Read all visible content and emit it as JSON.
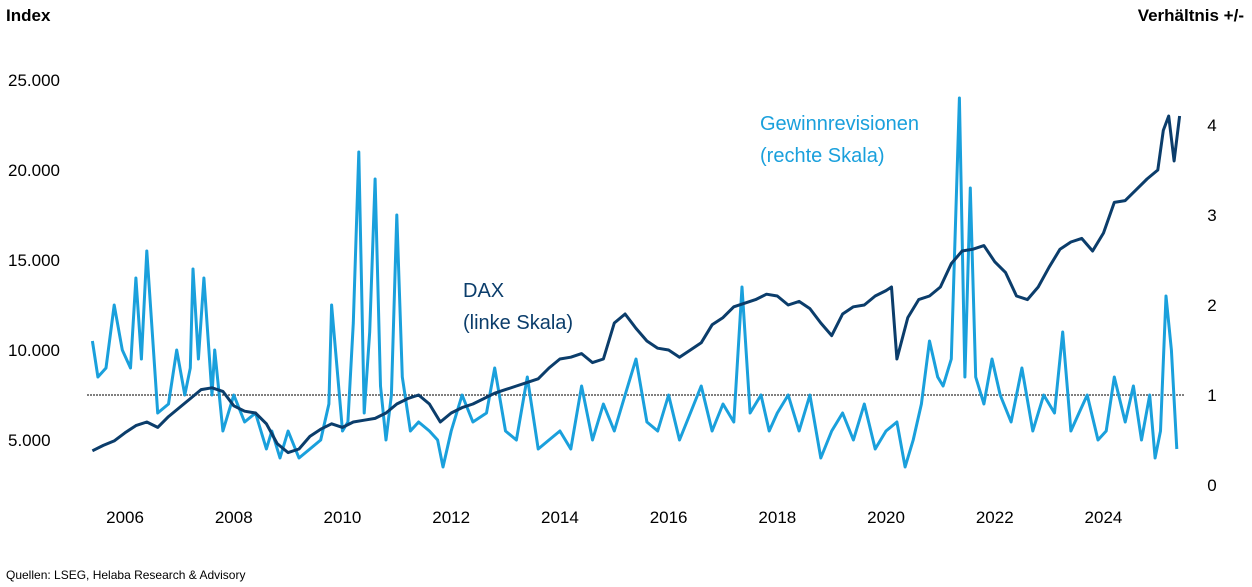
{
  "chart_data": {
    "type": "line",
    "left_axis_title": "Index",
    "right_axis_title": "Verhältnis +/-",
    "source": "Quellen: LSEG, Helaba Research & Advisory",
    "x_range": [
      2005.4,
      2025.6
    ],
    "x_ticks": [
      "2006",
      "2008",
      "2010",
      "2012",
      "2014",
      "2016",
      "2018",
      "2020",
      "2022",
      "2024"
    ],
    "x_tick_values": [
      2006,
      2008,
      2010,
      2012,
      2014,
      2016,
      2018,
      2020,
      2022,
      2024
    ],
    "y_left_range": [
      2500,
      27500
    ],
    "y_left_ticks": [
      "5.000",
      "10.000",
      "15.000",
      "20.000",
      "25.000"
    ],
    "y_left_tick_values": [
      5000,
      10000,
      15000,
      20000,
      25000
    ],
    "y_right_range": [
      0,
      5
    ],
    "y_right_ticks": [
      "0",
      "1",
      "2",
      "3",
      "4"
    ],
    "y_right_tick_values": [
      0,
      1,
      2,
      3,
      4
    ],
    "reference_line_right": 1,
    "annotations": [
      {
        "lines": [
          "Gewinnrevisionen",
          "(rechte Skala)"
        ],
        "color": "#1aa0dc"
      },
      {
        "lines": [
          "DAX",
          "(linke Skala)"
        ],
        "color": "#0b3d6b"
      }
    ],
    "series": [
      {
        "name": "DAX",
        "axis": "left",
        "color": "#0b3d6b",
        "x": [
          2005.5,
          2005.7,
          2005.9,
          2006.1,
          2006.3,
          2006.5,
          2006.7,
          2006.9,
          2007.1,
          2007.3,
          2007.5,
          2007.7,
          2007.9,
          2008.1,
          2008.3,
          2008.5,
          2008.7,
          2008.9,
          2009.1,
          2009.3,
          2009.5,
          2009.7,
          2009.9,
          2010.1,
          2010.3,
          2010.5,
          2010.7,
          2010.9,
          2011.1,
          2011.3,
          2011.5,
          2011.7,
          2011.9,
          2012.1,
          2012.3,
          2012.5,
          2012.7,
          2012.9,
          2013.1,
          2013.3,
          2013.5,
          2013.7,
          2013.9,
          2014.1,
          2014.3,
          2014.5,
          2014.7,
          2014.9,
          2015.1,
          2015.3,
          2015.5,
          2015.7,
          2015.9,
          2016.1,
          2016.3,
          2016.5,
          2016.7,
          2016.9,
          2017.1,
          2017.3,
          2017.5,
          2017.7,
          2017.9,
          2018.1,
          2018.3,
          2018.5,
          2018.7,
          2018.9,
          2019.1,
          2019.3,
          2019.5,
          2019.7,
          2019.9,
          2020.1,
          2020.2,
          2020.3,
          2020.5,
          2020.7,
          2020.9,
          2021.1,
          2021.3,
          2021.5,
          2021.7,
          2021.9,
          2022.1,
          2022.3,
          2022.5,
          2022.7,
          2022.9,
          2023.1,
          2023.3,
          2023.5,
          2023.7,
          2023.9,
          2024.1,
          2024.3,
          2024.5,
          2024.7,
          2024.9,
          2025.1,
          2025.2,
          2025.3,
          2025.4,
          2025.5
        ],
        "values": [
          4400,
          4700,
          4950,
          5400,
          5800,
          6000,
          5700,
          6300,
          6800,
          7300,
          7800,
          7900,
          7700,
          6900,
          6600,
          6500,
          5900,
          4800,
          4300,
          4500,
          5200,
          5600,
          5900,
          5700,
          6000,
          6100,
          6200,
          6500,
          7000,
          7300,
          7500,
          7000,
          6000,
          6500,
          6800,
          7000,
          7300,
          7600,
          7800,
          8000,
          8200,
          8400,
          9000,
          9500,
          9600,
          9800,
          9300,
          9500,
          11500,
          12000,
          11200,
          10500,
          10100,
          10000,
          9600,
          10000,
          10400,
          11400,
          11800,
          12400,
          12600,
          12800,
          13100,
          13000,
          12500,
          12700,
          12300,
          11500,
          10800,
          12000,
          12400,
          12500,
          13000,
          13300,
          13500,
          9500,
          11800,
          12800,
          13000,
          13500,
          14800,
          15500,
          15600,
          15800,
          14900,
          14300,
          13000,
          12800,
          13500,
          14600,
          15600,
          16000,
          16200,
          15500,
          16500,
          18200,
          18300,
          18900,
          19500,
          20000,
          22200,
          23000,
          20500,
          23000
        ]
      },
      {
        "name": "Gewinnrevisionen",
        "axis": "right",
        "color": "#1aa0dc",
        "x": [
          2005.5,
          2005.6,
          2005.75,
          2005.9,
          2006.05,
          2006.2,
          2006.3,
          2006.4,
          2006.5,
          2006.7,
          2006.9,
          2007.05,
          2007.2,
          2007.3,
          2007.35,
          2007.45,
          2007.55,
          2007.7,
          2007.75,
          2007.9,
          2008.1,
          2008.3,
          2008.5,
          2008.7,
          2008.8,
          2008.95,
          2009.1,
          2009.3,
          2009.5,
          2009.7,
          2009.85,
          2009.9,
          2010.1,
          2010.2,
          2010.3,
          2010.4,
          2010.5,
          2010.6,
          2010.7,
          2010.8,
          2010.9,
          2011.0,
          2011.1,
          2011.2,
          2011.25,
          2011.35,
          2011.5,
          2011.7,
          2011.85,
          2011.95,
          2012.1,
          2012.3,
          2012.5,
          2012.75,
          2012.9,
          2013.1,
          2013.3,
          2013.5,
          2013.7,
          2013.9,
          2014.1,
          2014.3,
          2014.5,
          2014.7,
          2014.9,
          2015.1,
          2015.3,
          2015.5,
          2015.7,
          2015.9,
          2016.1,
          2016.3,
          2016.5,
          2016.7,
          2016.9,
          2017.1,
          2017.3,
          2017.45,
          2017.6,
          2017.8,
          2017.95,
          2018.1,
          2018.3,
          2018.5,
          2018.7,
          2018.9,
          2019.1,
          2019.3,
          2019.5,
          2019.7,
          2019.9,
          2020.1,
          2020.3,
          2020.45,
          2020.6,
          2020.75,
          2020.9,
          2021.05,
          2021.15,
          2021.3,
          2021.45,
          2021.55,
          2021.65,
          2021.75,
          2021.9,
          2022.05,
          2022.2,
          2022.4,
          2022.6,
          2022.8,
          2023.0,
          2023.2,
          2023.35,
          2023.5,
          2023.65,
          2023.8,
          2024.0,
          2024.15,
          2024.3,
          2024.5,
          2024.65,
          2024.8,
          2024.95,
          2025.05,
          2025.15,
          2025.25,
          2025.35,
          2025.45
        ],
        "values": [
          1.6,
          1.2,
          1.3,
          2.0,
          1.5,
          1.3,
          2.3,
          1.4,
          2.6,
          0.8,
          0.9,
          1.5,
          1.0,
          1.3,
          2.4,
          1.4,
          2.3,
          1.0,
          1.5,
          0.6,
          1.0,
          0.7,
          0.8,
          0.4,
          0.6,
          0.3,
          0.6,
          0.3,
          0.4,
          0.5,
          0.9,
          2.0,
          0.6,
          0.7,
          1.8,
          3.7,
          0.8,
          1.7,
          3.4,
          1.1,
          0.5,
          1.0,
          3.0,
          1.2,
          1.0,
          0.6,
          0.7,
          0.6,
          0.5,
          0.2,
          0.6,
          1.0,
          0.7,
          0.8,
          1.3,
          0.6,
          0.5,
          1.2,
          0.4,
          0.5,
          0.6,
          0.4,
          1.1,
          0.5,
          0.9,
          0.6,
          1.0,
          1.4,
          0.7,
          0.6,
          1.0,
          0.5,
          0.8,
          1.1,
          0.6,
          0.9,
          0.7,
          2.2,
          0.8,
          1.0,
          0.6,
          0.8,
          1.0,
          0.6,
          1.0,
          0.3,
          0.6,
          0.8,
          0.5,
          0.9,
          0.4,
          0.6,
          0.7,
          0.2,
          0.5,
          0.9,
          1.6,
          1.2,
          1.1,
          1.4,
          4.3,
          1.2,
          3.3,
          1.2,
          0.9,
          1.4,
          1.0,
          0.7,
          1.3,
          0.6,
          1.0,
          0.8,
          1.7,
          0.6,
          0.8,
          1.0,
          0.5,
          0.6,
          1.2,
          0.7,
          1.1,
          0.5,
          1.0,
          0.3,
          0.6,
          2.1,
          1.5,
          0.4
        ]
      }
    ]
  }
}
